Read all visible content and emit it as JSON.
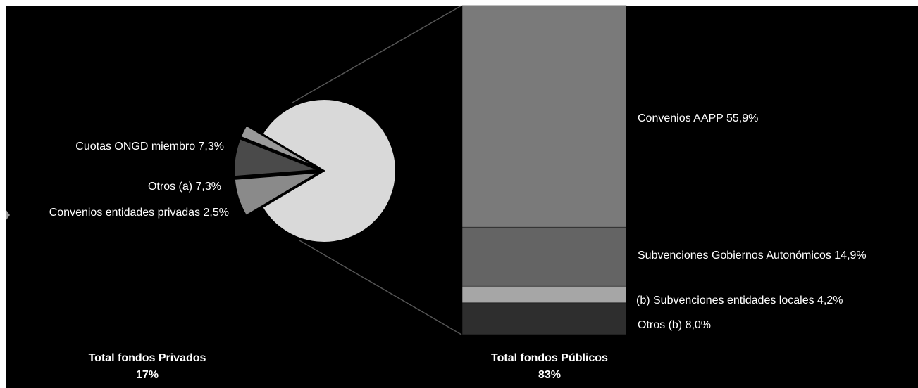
{
  "chart_data": {
    "type": "bar-of-pie",
    "colors": {
      "background": "#000000",
      "pie_main": "#d9d9d9",
      "bar_stroke": "#000000",
      "connector": "#555555",
      "text": "#ffffff"
    },
    "pie": {
      "slices": [
        {
          "label": "Cuotas ONGD miembro 7,3%",
          "value": 7.3,
          "color": "#8a8a8a"
        },
        {
          "label": "Otros (a) 7,3%",
          "value": 7.3,
          "color": "#4a4a4a"
        },
        {
          "label": "Convenios entidades privadas 2,5%",
          "value": 2.5,
          "color": "#9a9a9a"
        },
        {
          "label": "",
          "value": 83,
          "color": "#d9d9d9"
        }
      ],
      "total_label": "Total fondos Privados",
      "total_value": "17%"
    },
    "bar": {
      "segments": [
        {
          "label": "Convenios AAPP 55,9%",
          "value": 55.9,
          "color": "#7a7a7a"
        },
        {
          "label": "Subvenciones Gobiernos Autonómicos 14,9%",
          "value": 14.9,
          "color": "#646464"
        },
        {
          "label": "(b) Subvenciones entidades locales 4,2%",
          "value": 4.2,
          "color": "#a6a6a6"
        },
        {
          "label": "Otros (b) 8,0%",
          "value": 8.0,
          "color": "#2e2e2e"
        }
      ],
      "total_label": "Total fondos Públicos",
      "total_value": "83%"
    }
  }
}
